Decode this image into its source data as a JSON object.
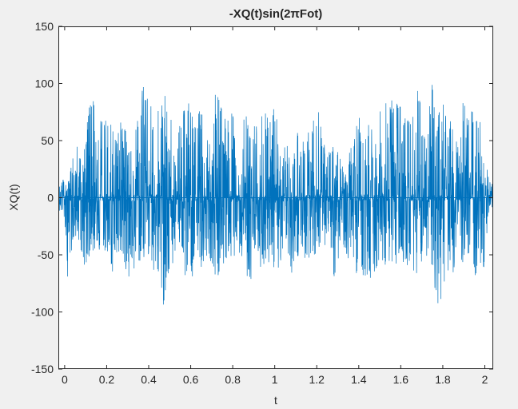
{
  "chart_data": {
    "type": "line",
    "title": "-XQ(t)sin(2πFot)",
    "xlabel": "t",
    "ylabel": "XQ(t)",
    "xlim": [
      -0.03,
      2.04
    ],
    "ylim": [
      -150,
      150
    ],
    "x_ticks": [
      0,
      0.2,
      0.4,
      0.6,
      0.8,
      1,
      1.2,
      1.4,
      1.6,
      1.8,
      2
    ],
    "x_tick_labels": [
      "0",
      "0.2",
      "0.4",
      "0.6",
      "0.8",
      "1",
      "1.2",
      "1.4",
      "1.6",
      "1.8",
      "2"
    ],
    "y_ticks": [
      150,
      100,
      50,
      0,
      -50,
      -100,
      -150
    ],
    "y_tick_labels": [
      "150",
      "100",
      "50",
      "0",
      "-50",
      "-100",
      "-150"
    ],
    "grid": false,
    "colors": {
      "line": "#0072bd",
      "axes_bg": "#ffffff",
      "figure_bg": "#f0f0f0",
      "axis": "#262626"
    },
    "series": [
      {
        "envelope_points": [
          [
            -0.03,
            12,
            -12
          ],
          [
            0.0,
            18,
            -20
          ],
          [
            0.02,
            15,
            -100
          ],
          [
            0.04,
            40,
            -45
          ],
          [
            0.06,
            45,
            -40
          ],
          [
            0.08,
            35,
            -58
          ],
          [
            0.1,
            60,
            -62
          ],
          [
            0.12,
            92,
            -55
          ],
          [
            0.15,
            80,
            -48
          ],
          [
            0.18,
            70,
            -60
          ],
          [
            0.2,
            68,
            -50
          ],
          [
            0.22,
            65,
            -75
          ],
          [
            0.24,
            55,
            -68
          ],
          [
            0.27,
            70,
            -50
          ],
          [
            0.3,
            62,
            -72
          ],
          [
            0.32,
            50,
            -62
          ],
          [
            0.35,
            70,
            -65
          ],
          [
            0.37,
            100,
            -58
          ],
          [
            0.4,
            88,
            -55
          ],
          [
            0.43,
            70,
            -68
          ],
          [
            0.45,
            85,
            -80
          ],
          [
            0.47,
            100,
            -100
          ],
          [
            0.5,
            82,
            -65
          ],
          [
            0.52,
            40,
            -55
          ],
          [
            0.55,
            65,
            -45
          ],
          [
            0.57,
            80,
            -68
          ],
          [
            0.6,
            90,
            -75
          ],
          [
            0.62,
            78,
            -68
          ],
          [
            0.65,
            75,
            -62
          ],
          [
            0.68,
            60,
            -55
          ],
          [
            0.7,
            62,
            -58
          ],
          [
            0.72,
            100,
            -70
          ],
          [
            0.75,
            78,
            -65
          ],
          [
            0.77,
            65,
            -55
          ],
          [
            0.8,
            82,
            -62
          ],
          [
            0.82,
            30,
            -40
          ],
          [
            0.85,
            75,
            -60
          ],
          [
            0.88,
            88,
            -78
          ],
          [
            0.9,
            75,
            -60
          ],
          [
            0.92,
            65,
            -62
          ],
          [
            0.94,
            72,
            -60
          ],
          [
            0.96,
            82,
            -65
          ],
          [
            0.98,
            70,
            -50
          ],
          [
            1.0,
            82,
            -70
          ],
          [
            1.03,
            55,
            -60
          ],
          [
            1.06,
            45,
            -48
          ],
          [
            1.08,
            30,
            -70
          ],
          [
            1.1,
            68,
            -50
          ],
          [
            1.12,
            55,
            -60
          ],
          [
            1.15,
            55,
            -55
          ],
          [
            1.18,
            65,
            -55
          ],
          [
            1.2,
            95,
            -68
          ],
          [
            1.22,
            62,
            -50
          ],
          [
            1.25,
            42,
            -45
          ],
          [
            1.28,
            45,
            -75
          ],
          [
            1.3,
            40,
            -62
          ],
          [
            1.32,
            30,
            -50
          ],
          [
            1.35,
            35,
            -55
          ],
          [
            1.38,
            65,
            -68
          ],
          [
            1.4,
            70,
            -80
          ],
          [
            1.42,
            75,
            -70
          ],
          [
            1.45,
            70,
            -80
          ],
          [
            1.48,
            60,
            -62
          ],
          [
            1.5,
            80,
            -60
          ],
          [
            1.52,
            82,
            -62
          ],
          [
            1.55,
            85,
            -55
          ],
          [
            1.58,
            88,
            -62
          ],
          [
            1.6,
            80,
            -65
          ],
          [
            1.62,
            70,
            -58
          ],
          [
            1.65,
            75,
            -65
          ],
          [
            1.68,
            100,
            -70
          ],
          [
            1.7,
            82,
            -55
          ],
          [
            1.72,
            55,
            -50
          ],
          [
            1.75,
            108,
            -60
          ],
          [
            1.77,
            80,
            -95
          ],
          [
            1.8,
            90,
            -88
          ],
          [
            1.82,
            75,
            -78
          ],
          [
            1.85,
            62,
            -68
          ],
          [
            1.88,
            55,
            -55
          ],
          [
            1.9,
            100,
            -60
          ],
          [
            1.92,
            80,
            -50
          ],
          [
            1.95,
            85,
            -65
          ],
          [
            1.98,
            65,
            -92
          ],
          [
            2.0,
            45,
            -55
          ],
          [
            2.02,
            15,
            -10
          ],
          [
            2.04,
            12,
            -12
          ]
        ]
      }
    ]
  }
}
